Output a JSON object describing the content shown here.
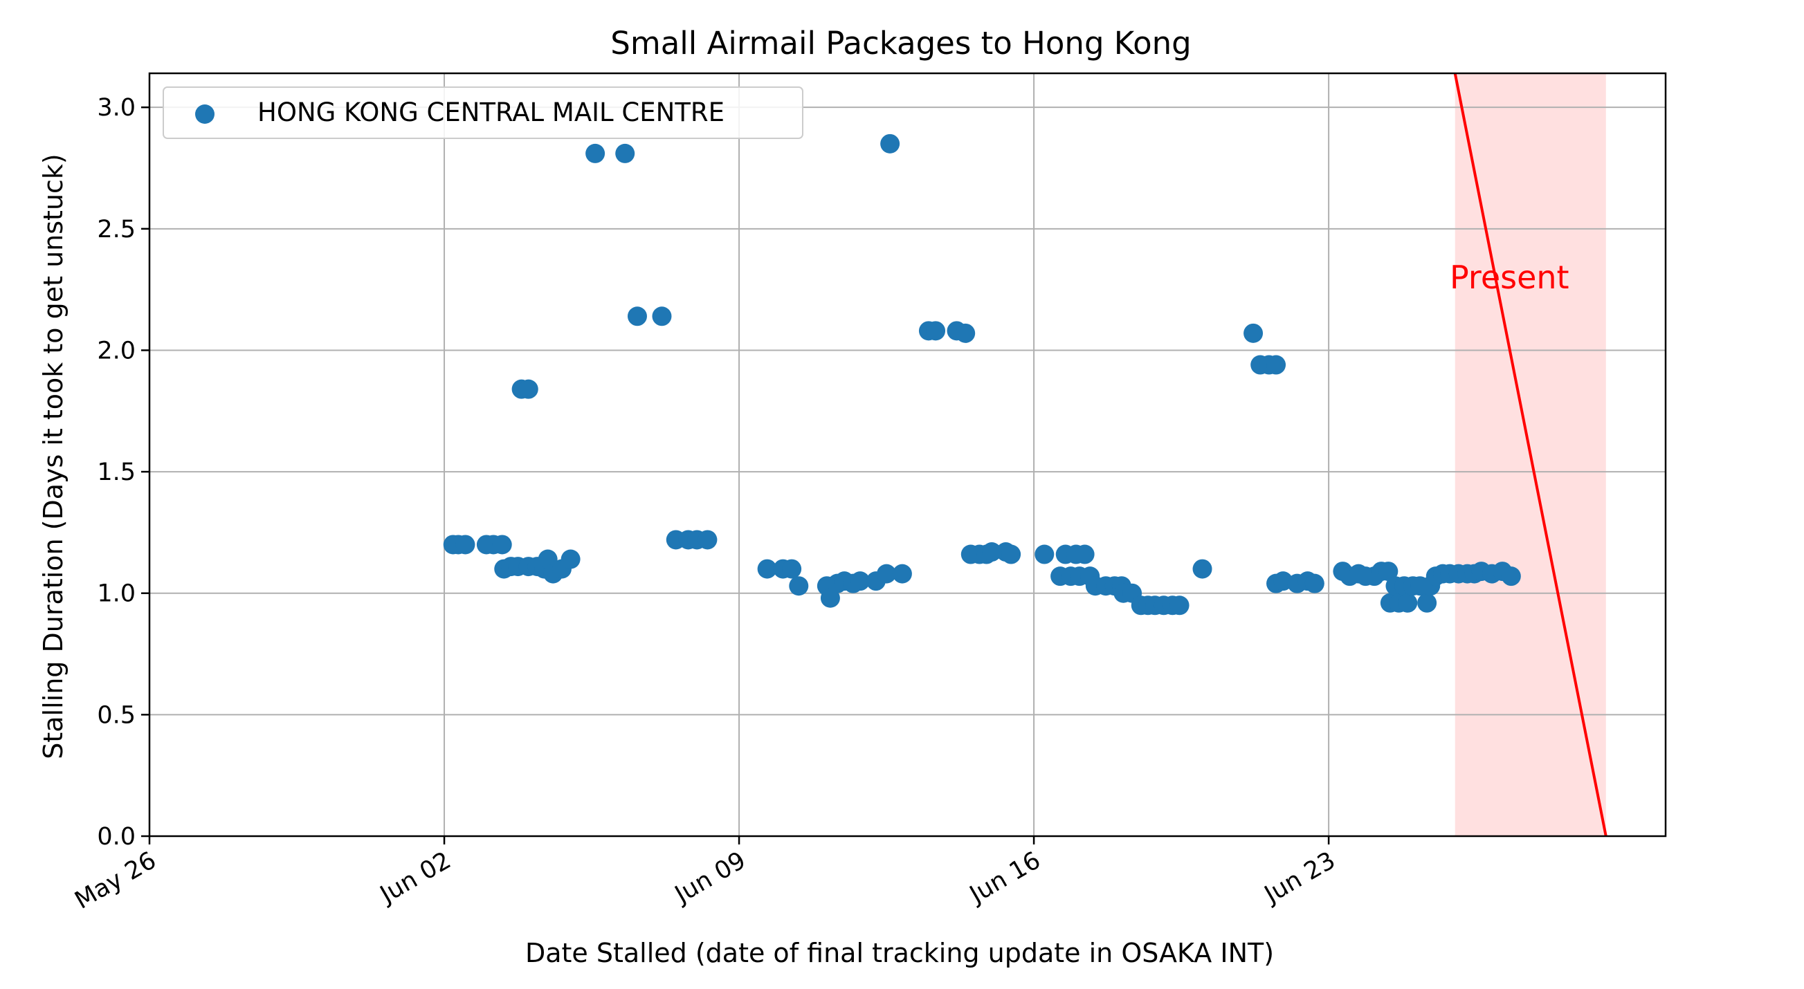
{
  "chart_data": {
    "type": "scatter",
    "title": "Small Airmail Packages to Hong Kong",
    "xlabel": "Date Stalled (date of final tracking update in OSAKA INT)",
    "ylabel": "Stalling Duration (Days it took to get unstuck)",
    "xlim": [
      "2024-05-26",
      "2024-07-01"
    ],
    "ylim": [
      0,
      3.14
    ],
    "x_ticks": [
      {
        "value": "2024-05-26",
        "label": "May 26"
      },
      {
        "value": "2024-06-02",
        "label": "Jun 02"
      },
      {
        "value": "2024-06-09",
        "label": "Jun 09"
      },
      {
        "value": "2024-06-16",
        "label": "Jun 16"
      },
      {
        "value": "2024-06-23",
        "label": "Jun 23"
      }
    ],
    "y_ticks": [
      {
        "value": 0.0,
        "label": "0.0"
      },
      {
        "value": 0.5,
        "label": "0.5"
      },
      {
        "value": 1.0,
        "label": "1.0"
      },
      {
        "value": 1.5,
        "label": "1.5"
      },
      {
        "value": 2.0,
        "label": "2.0"
      },
      {
        "value": 2.5,
        "label": "2.5"
      },
      {
        "value": 3.0,
        "label": "3.0"
      }
    ],
    "grid": true,
    "legend": {
      "placement": "top-left",
      "entries": [
        "HONG KONG CENTRAL MAIL CENTRE"
      ]
    },
    "series": [
      {
        "name": "HONG KONG CENTRAL MAIL CENTRE",
        "color": "#1f77b4",
        "points": [
          [
            "2024-06-02 05:00",
            1.2
          ],
          [
            "2024-06-02 08:00",
            1.2
          ],
          [
            "2024-06-02 12:00",
            1.2
          ],
          [
            "2024-06-03 00:00",
            1.2
          ],
          [
            "2024-06-03 04:00",
            1.2
          ],
          [
            "2024-06-03 09:00",
            1.2
          ],
          [
            "2024-06-03 10:00",
            1.1
          ],
          [
            "2024-06-03 14:00",
            1.11
          ],
          [
            "2024-06-03 18:00",
            1.11
          ],
          [
            "2024-06-03 20:00",
            1.84
          ],
          [
            "2024-06-04 00:00",
            1.84
          ],
          [
            "2024-06-04 00:00",
            1.11
          ],
          [
            "2024-06-04 05:00",
            1.11
          ],
          [
            "2024-06-04 09:00",
            1.1
          ],
          [
            "2024-06-04 11:00",
            1.14
          ],
          [
            "2024-06-04 14:00",
            1.08
          ],
          [
            "2024-06-04 19:00",
            1.1
          ],
          [
            "2024-06-05 00:00",
            1.14
          ],
          [
            "2024-06-05 14:00",
            2.81
          ],
          [
            "2024-06-06 07:00",
            2.81
          ],
          [
            "2024-06-06 14:00",
            2.14
          ],
          [
            "2024-06-07 04:00",
            2.14
          ],
          [
            "2024-06-07 12:00",
            1.22
          ],
          [
            "2024-06-07 19:00",
            1.22
          ],
          [
            "2024-06-08 00:00",
            1.22
          ],
          [
            "2024-06-08 06:00",
            1.22
          ],
          [
            "2024-06-09 16:00",
            1.1
          ],
          [
            "2024-06-10 01:00",
            1.1
          ],
          [
            "2024-06-10 06:00",
            1.1
          ],
          [
            "2024-06-10 10:00",
            1.03
          ],
          [
            "2024-06-11 02:00",
            1.03
          ],
          [
            "2024-06-11 04:00",
            0.98
          ],
          [
            "2024-06-11 08:00",
            1.04
          ],
          [
            "2024-06-11 12:00",
            1.05
          ],
          [
            "2024-06-11 17:00",
            1.04
          ],
          [
            "2024-06-11 21:00",
            1.05
          ],
          [
            "2024-06-12 06:00",
            1.05
          ],
          [
            "2024-06-12 12:00",
            1.08
          ],
          [
            "2024-06-12 14:00",
            2.85
          ],
          [
            "2024-06-12 21:00",
            1.08
          ],
          [
            "2024-06-13 12:00",
            2.08
          ],
          [
            "2024-06-13 16:00",
            2.08
          ],
          [
            "2024-06-14 04:00",
            2.08
          ],
          [
            "2024-06-14 09:00",
            2.07
          ],
          [
            "2024-06-14 12:00",
            1.16
          ],
          [
            "2024-06-14 17:00",
            1.16
          ],
          [
            "2024-06-14 21:00",
            1.16
          ],
          [
            "2024-06-15 00:00",
            1.17
          ],
          [
            "2024-06-15 08:00",
            1.17
          ],
          [
            "2024-06-15 11:00",
            1.16
          ],
          [
            "2024-06-16 06:00",
            1.16
          ],
          [
            "2024-06-16 15:00",
            1.07
          ],
          [
            "2024-06-16 18:00",
            1.16
          ],
          [
            "2024-06-16 21:00",
            1.07
          ],
          [
            "2024-06-17 00:00",
            1.16
          ],
          [
            "2024-06-17 02:00",
            1.07
          ],
          [
            "2024-06-17 05:00",
            1.16
          ],
          [
            "2024-06-17 08:00",
            1.07
          ],
          [
            "2024-06-17 11:00",
            1.03
          ],
          [
            "2024-06-17 17:00",
            1.03
          ],
          [
            "2024-06-17 22:00",
            1.03
          ],
          [
            "2024-06-18 02:00",
            1.03
          ],
          [
            "2024-06-18 03:00",
            1.0
          ],
          [
            "2024-06-18 08:00",
            1.0
          ],
          [
            "2024-06-18 13:00",
            0.95
          ],
          [
            "2024-06-18 17:00",
            0.95
          ],
          [
            "2024-06-18 21:00",
            0.95
          ],
          [
            "2024-06-19 02:00",
            0.95
          ],
          [
            "2024-06-19 07:00",
            0.95
          ],
          [
            "2024-06-19 11:00",
            0.95
          ],
          [
            "2024-06-20 00:00",
            1.1
          ],
          [
            "2024-06-21 05:00",
            2.07
          ],
          [
            "2024-06-21 09:00",
            1.94
          ],
          [
            "2024-06-21 14:00",
            1.94
          ],
          [
            "2024-06-21 18:00",
            1.94
          ],
          [
            "2024-06-21 18:00",
            1.04
          ],
          [
            "2024-06-21 22:00",
            1.05
          ],
          [
            "2024-06-22 06:00",
            1.04
          ],
          [
            "2024-06-22 12:00",
            1.05
          ],
          [
            "2024-06-22 16:00",
            1.04
          ],
          [
            "2024-06-23 08:00",
            1.09
          ],
          [
            "2024-06-23 12:00",
            1.07
          ],
          [
            "2024-06-23 17:00",
            1.08
          ],
          [
            "2024-06-23 21:00",
            1.07
          ],
          [
            "2024-06-24 02:00",
            1.07
          ],
          [
            "2024-06-24 06:00",
            1.09
          ],
          [
            "2024-06-24 10:00",
            1.09
          ],
          [
            "2024-06-24 11:00",
            0.96
          ],
          [
            "2024-06-24 14:00",
            1.03
          ],
          [
            "2024-06-24 16:00",
            0.96
          ],
          [
            "2024-06-24 19:00",
            1.03
          ],
          [
            "2024-06-24 21:00",
            0.96
          ],
          [
            "2024-06-25 00:00",
            1.03
          ],
          [
            "2024-06-25 04:00",
            1.03
          ],
          [
            "2024-06-25 08:00",
            0.96
          ],
          [
            "2024-06-25 10:00",
            1.03
          ],
          [
            "2024-06-25 13:00",
            1.07
          ],
          [
            "2024-06-25 17:00",
            1.08
          ],
          [
            "2024-06-25 21:00",
            1.08
          ],
          [
            "2024-06-26 02:00",
            1.08
          ],
          [
            "2024-06-26 07:00",
            1.08
          ],
          [
            "2024-06-26 11:00",
            1.08
          ],
          [
            "2024-06-26 15:00",
            1.09
          ],
          [
            "2024-06-26 21:00",
            1.08
          ],
          [
            "2024-06-27 03:00",
            1.09
          ],
          [
            "2024-06-27 08:00",
            1.07
          ]
        ]
      }
    ],
    "annotations": [
      {
        "text": "Present",
        "color": "#ff0000",
        "line": [
          [
            "2024-06-26 00:00",
            3.14
          ],
          [
            "2024-06-29 14:00",
            0.0
          ]
        ],
        "shade": {
          "x_start": "2024-06-26 00:00",
          "x_end": "2024-06-29 14:00",
          "color": "#ffe0e0"
        },
        "text_at": [
          "2024-06-27 07:00",
          2.3
        ]
      }
    ]
  }
}
